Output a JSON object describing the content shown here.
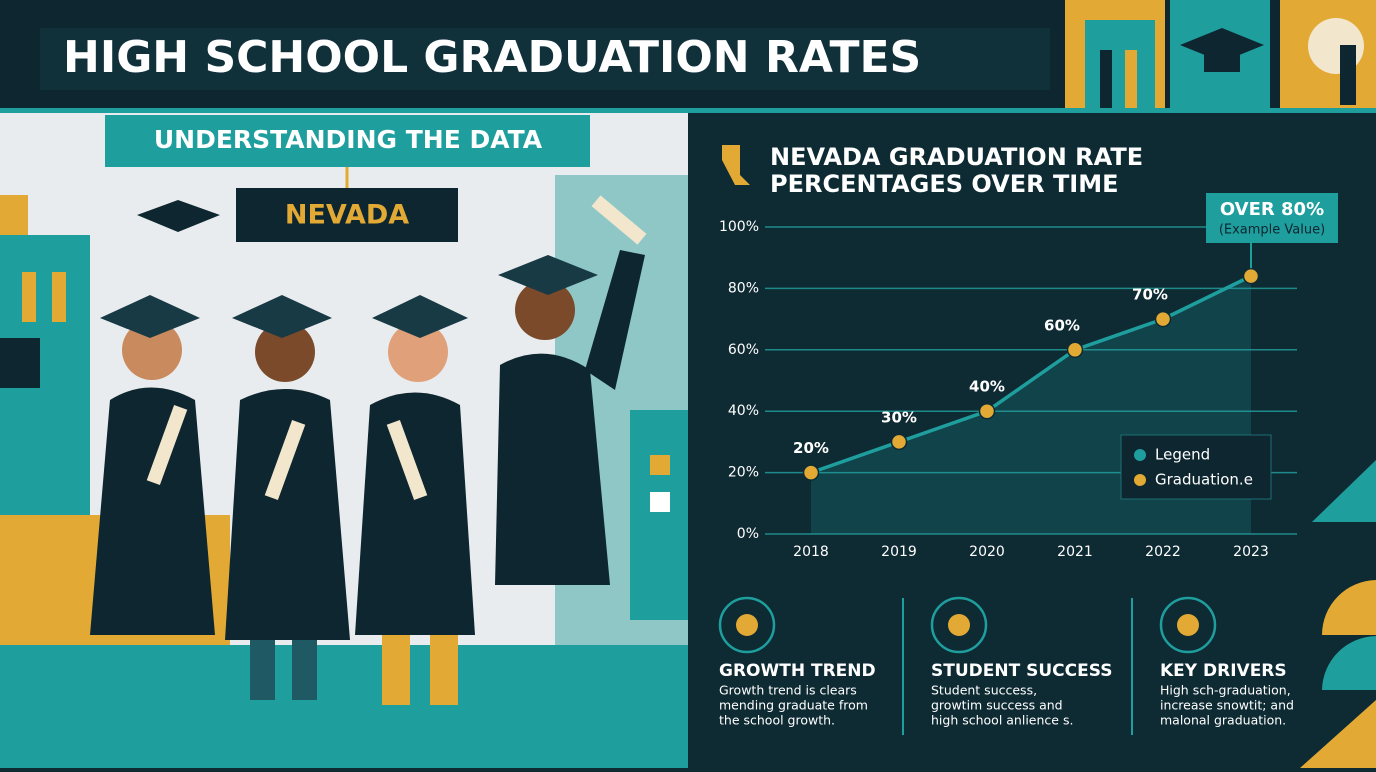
{
  "header": {
    "title": "HIGH SCHOOL GRADUATION RATES"
  },
  "left": {
    "banner": "UNDERSTANDING THE DATA",
    "state": "NEVADA"
  },
  "chart_data": {
    "type": "line",
    "title": [
      "NEVADA GRADUATION RATE",
      "PERCENTAGES OVER TIME"
    ],
    "categories": [
      "2018",
      "2019",
      "2020",
      "2021",
      "2022",
      "2023"
    ],
    "series": [
      {
        "name": "Graduation.e",
        "color": "#1f9e9e",
        "marker_color": "#e3a935",
        "values": [
          20,
          30,
          40,
          60,
          70,
          84
        ],
        "value_labels": [
          "20%",
          "30%",
          "40%",
          "60%",
          "70%",
          null
        ]
      }
    ],
    "ylim": [
      0,
      100
    ],
    "yticks": [
      {
        "value": 0,
        "label": "0%"
      },
      {
        "value": 20,
        "label": "20%"
      },
      {
        "value": 40,
        "label": "40%"
      },
      {
        "value": 60,
        "label": "60%"
      },
      {
        "value": 80,
        "label": "80%"
      },
      {
        "value": 100,
        "label": "100%"
      }
    ],
    "grid": true,
    "legend_title": "Legend",
    "annotation": {
      "text": "OVER 80%",
      "note": "(Example Value)"
    }
  },
  "cards": [
    {
      "title": "GROWTH TREND",
      "lines": [
        "Growth trend is clears",
        "mending graduate from",
        "the school growth."
      ]
    },
    {
      "title": "STUDENT SUCCESS",
      "lines": [
        "Student success,",
        "growtim success and",
        "high school anlience s."
      ]
    },
    {
      "title": "KEY DRIVERS",
      "lines": [
        "High sch-graduation,",
        "increase snowtit; and",
        "malonal graduation."
      ]
    }
  ]
}
